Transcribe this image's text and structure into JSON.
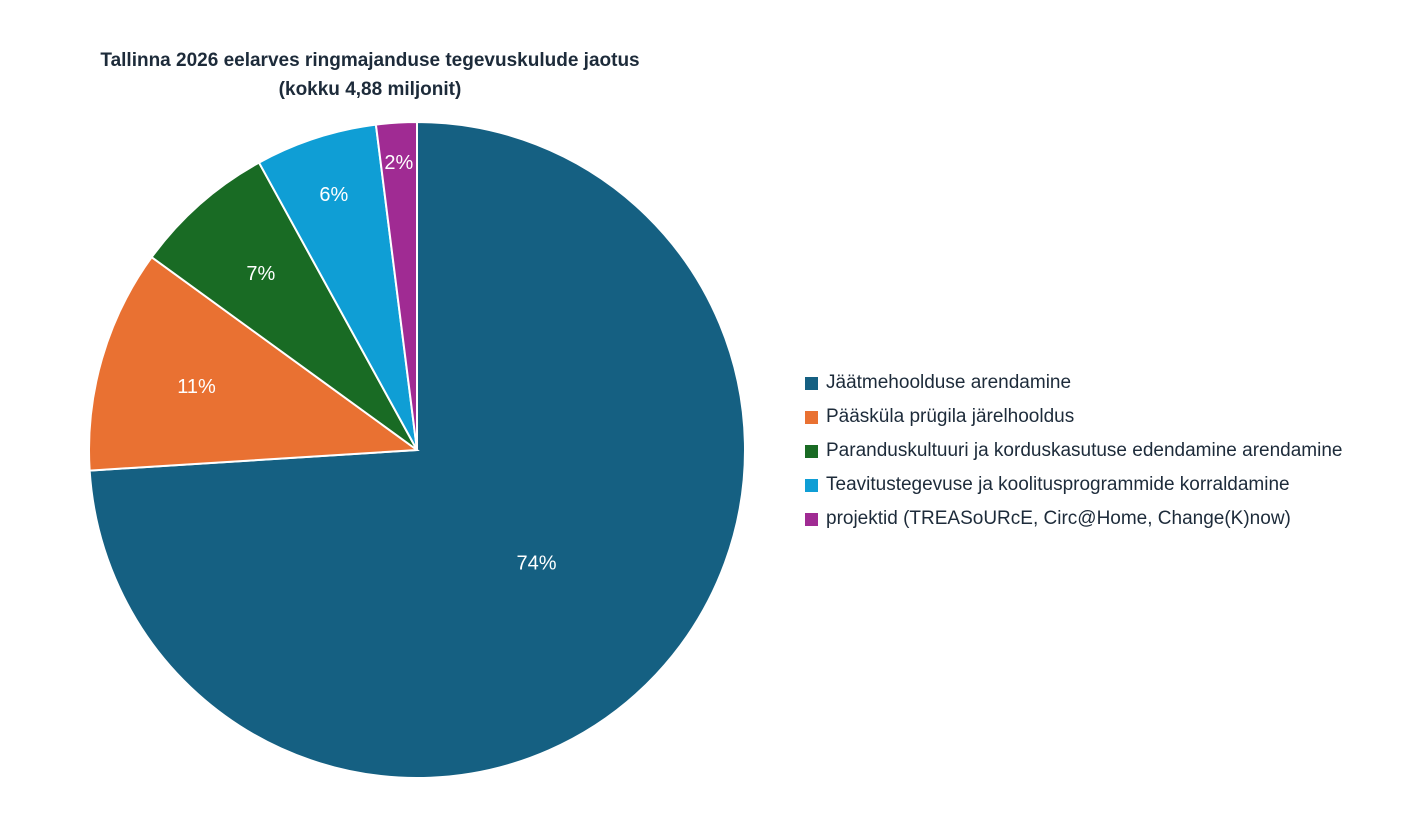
{
  "chart_data": {
    "type": "pie",
    "title": "Tallinna 2026 eelarves ringmajanduse tegevuskulude jaotus",
    "subtitle": "(kokku 4,88 miljonit)",
    "value_suffix": "%",
    "legend_position": "right",
    "start_angle_deg_from_top": 0,
    "direction": "clockwise",
    "slices": [
      {
        "label": "Jäätmehoolduse arendamine",
        "value": 74,
        "color": "#156082"
      },
      {
        "label": "Pääsküla prügila järelhooldus",
        "value": 11,
        "color": "#E97132"
      },
      {
        "label": "Paranduskultuuri ja korduskasutuse edendamine arendamine",
        "value": 7,
        "color": "#196B24"
      },
      {
        "label": "Teavitustegevuse ja koolitusprogrammide korraldamine",
        "value": 6,
        "color": "#0F9ED5"
      },
      {
        "label": "projektid (TREASoURcE, Circ@Home, Change(K)now)",
        "value": 2,
        "color": "#A02B93"
      }
    ]
  }
}
